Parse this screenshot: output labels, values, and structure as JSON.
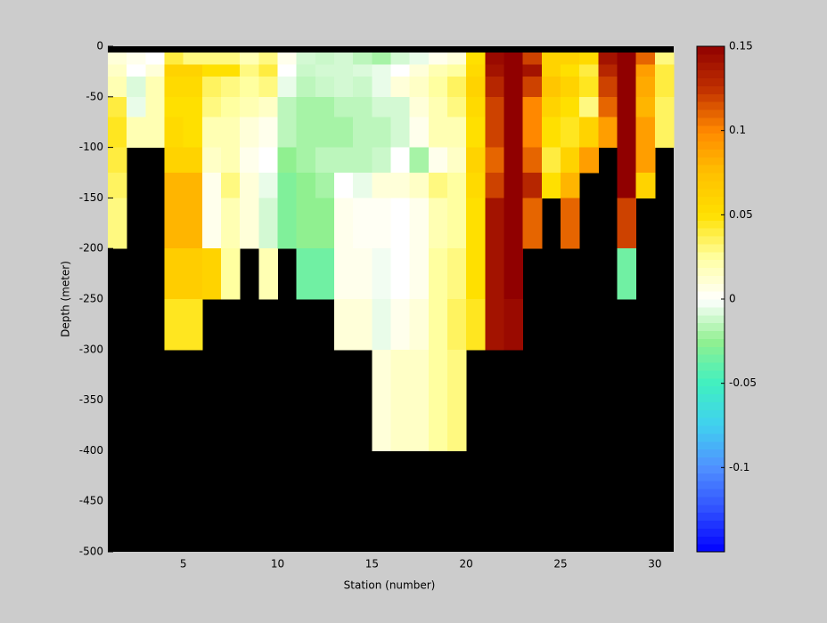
{
  "chart_data": {
    "type": "heatmap",
    "x_label": "Station (number)",
    "y_label": "Depth (meter)",
    "x": [
      1,
      2,
      3,
      4,
      5,
      6,
      7,
      8,
      9,
      10,
      11,
      12,
      13,
      14,
      15,
      16,
      17,
      18,
      19,
      20,
      21,
      22,
      23,
      24,
      25,
      26,
      27,
      28,
      29,
      30
    ],
    "y_edges": [
      -6,
      -18,
      -30,
      -50,
      -70,
      -100,
      -125,
      -150,
      -200,
      -250,
      -300,
      -400,
      -500
    ],
    "xlim": [
      1,
      31
    ],
    "ylim": [
      -500,
      0
    ],
    "xticks": [
      5,
      10,
      15,
      20,
      25,
      30
    ],
    "yticks": [
      0,
      -50,
      -100,
      -150,
      -200,
      -250,
      -300,
      -350,
      -400,
      -450,
      -500
    ],
    "clim": [
      -0.15,
      0.15
    ],
    "cticks": [
      0.15,
      0.1,
      0.05,
      0,
      -0.05,
      -0.1
    ],
    "colormap": [
      "#0000ff",
      "#3050ff",
      "#5090ff",
      "#40d0f0",
      "#40f0c0",
      "#90f090",
      "#ffffff",
      "#ffffa0",
      "#ffe000",
      "#ffc000",
      "#ff8800",
      "#c03000",
      "#900000"
    ],
    "missing_color": "#000000",
    "values": [
      [
        0.01,
        0.015,
        0.02,
        0.04,
        0.045,
        0.04,
        0.035,
        0.03,
        null,
        null,
        null,
        null
      ],
      [
        0.005,
        0.0,
        -0.008,
        -0.005,
        0.02,
        null,
        null,
        null,
        null,
        null,
        null,
        null
      ],
      [
        0.0,
        0.01,
        0.02,
        0.02,
        0.02,
        null,
        null,
        null,
        null,
        null,
        null,
        null
      ],
      [
        0.04,
        0.06,
        0.055,
        0.05,
        0.055,
        0.06,
        0.08,
        0.08,
        0.065,
        0.045,
        null,
        null
      ],
      [
        0.03,
        0.06,
        0.055,
        0.05,
        0.05,
        0.06,
        0.08,
        0.08,
        0.065,
        0.045,
        null,
        null
      ],
      [
        0.03,
        0.05,
        0.035,
        0.03,
        0.02,
        0.015,
        0.005,
        0.005,
        0.06,
        null,
        null,
        null
      ],
      [
        0.03,
        0.05,
        0.03,
        0.025,
        0.02,
        0.02,
        0.03,
        0.02,
        0.025,
        null,
        null,
        null
      ],
      [
        0.02,
        0.03,
        0.025,
        0.02,
        0.01,
        0.005,
        0.01,
        0.01,
        null,
        null,
        null,
        null
      ],
      [
        0.03,
        0.04,
        0.03,
        0.015,
        0.005,
        0.0,
        -0.005,
        -0.01,
        0.02,
        null,
        null,
        null
      ],
      [
        0.005,
        0.0,
        -0.005,
        -0.015,
        -0.015,
        -0.025,
        -0.03,
        -0.03,
        null,
        null,
        null,
        null
      ],
      [
        -0.01,
        -0.012,
        -0.015,
        -0.02,
        -0.02,
        -0.02,
        -0.025,
        -0.025,
        -0.035,
        null,
        null,
        null
      ],
      [
        -0.012,
        -0.01,
        -0.012,
        -0.02,
        -0.02,
        -0.015,
        -0.02,
        -0.025,
        -0.035,
        null,
        null,
        null
      ],
      [
        -0.01,
        -0.01,
        -0.01,
        -0.015,
        -0.02,
        -0.015,
        0.0,
        0.005,
        0.005,
        0.01,
        null,
        null
      ],
      [
        -0.015,
        -0.008,
        -0.012,
        -0.015,
        -0.015,
        -0.015,
        -0.005,
        0.003,
        0.005,
        0.01,
        null,
        null
      ],
      [
        -0.02,
        -0.005,
        -0.005,
        -0.01,
        -0.015,
        -0.012,
        0.01,
        0.003,
        -0.003,
        -0.005,
        0.01,
        null
      ],
      [
        -0.01,
        0.0,
        0.01,
        -0.01,
        -0.01,
        0.0,
        0.01,
        0.0,
        0.0,
        0.005,
        0.015,
        null
      ],
      [
        -0.005,
        0.01,
        0.015,
        0.01,
        0.005,
        -0.02,
        0.015,
        0.005,
        0.005,
        0.01,
        0.015,
        null
      ],
      [
        0.005,
        0.02,
        0.025,
        0.02,
        0.02,
        0.005,
        0.03,
        0.02,
        0.025,
        0.025,
        0.025,
        null
      ],
      [
        0.01,
        0.025,
        0.035,
        0.03,
        0.02,
        0.015,
        0.025,
        0.025,
        0.03,
        0.035,
        0.03,
        null
      ],
      [
        0.05,
        0.055,
        0.06,
        0.055,
        0.05,
        0.06,
        0.055,
        0.05,
        0.05,
        0.045,
        null,
        null
      ],
      [
        0.145,
        0.14,
        0.13,
        0.12,
        0.12,
        0.11,
        0.12,
        0.14,
        0.14,
        0.14,
        null,
        null
      ],
      [
        0.15,
        0.15,
        0.15,
        0.15,
        0.15,
        0.15,
        0.15,
        0.15,
        0.15,
        0.145,
        null,
        null
      ],
      [
        0.12,
        0.14,
        0.12,
        0.1,
        0.1,
        0.11,
        0.13,
        0.11,
        null,
        null,
        null,
        null
      ],
      [
        0.06,
        0.06,
        0.07,
        0.06,
        0.05,
        0.04,
        0.05,
        null,
        null,
        null,
        null,
        null
      ],
      [
        0.06,
        0.05,
        0.06,
        0.05,
        0.045,
        0.06,
        0.08,
        0.11,
        null,
        null,
        null,
        null
      ],
      [
        0.055,
        0.04,
        0.045,
        0.03,
        0.06,
        0.09,
        null,
        null,
        null,
        null,
        null,
        null
      ],
      [
        0.14,
        0.13,
        0.12,
        0.11,
        0.09,
        null,
        null,
        null,
        null,
        null,
        null,
        null
      ],
      [
        0.15,
        0.15,
        0.15,
        0.15,
        0.15,
        0.15,
        0.15,
        0.12,
        -0.035,
        null,
        null,
        null
      ],
      [
        0.11,
        0.09,
        0.085,
        0.08,
        0.09,
        0.09,
        0.06,
        null,
        null,
        null,
        null,
        null
      ],
      [
        0.03,
        0.04,
        0.04,
        0.035,
        0.035,
        null,
        null,
        null,
        null,
        null,
        null,
        null
      ]
    ]
  }
}
